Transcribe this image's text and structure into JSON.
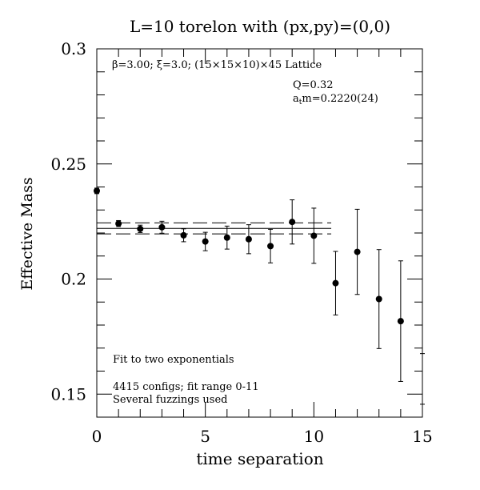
{
  "chart_data": {
    "type": "scatter",
    "title": "L=10 torelon with (px,py)=(0,0)",
    "xlabel": "time separation",
    "ylabel": "Effective Mass",
    "xlim": [
      0,
      15
    ],
    "ylim": [
      0.14,
      0.3
    ],
    "xticks": [
      0,
      5,
      10,
      15
    ],
    "xtick_labels": [
      "0",
      "5",
      "10",
      "15"
    ],
    "yticks": [
      0.15,
      0.2,
      0.25,
      0.3
    ],
    "ytick_labels": [
      "0.15",
      "0.2",
      "0.25",
      "0.3"
    ],
    "grid": false,
    "annotations": {
      "lattice": "β=3.00; ξ=3.0; (15×15×10)×45 Lattice",
      "q": "Q=0.32",
      "mass_prefix": "a",
      "mass_sub": "t",
      "mass_rest": "m=0.2220(24)",
      "fit_type": "Fit to two exponentials",
      "configs": "4415 configs; fit range 0-11",
      "fuzzing": "Several fuzzings used"
    },
    "fit": {
      "value": 0.222,
      "error": 0.0024,
      "x_range": [
        0,
        10.8
      ]
    },
    "points": [
      {
        "x": 0,
        "y": 0.2383,
        "err": 0.0012
      },
      {
        "x": 1,
        "y": 0.2241,
        "err": 0.0013
      },
      {
        "x": 2,
        "y": 0.2218,
        "err": 0.0016
      },
      {
        "x": 3,
        "y": 0.2225,
        "err": 0.0026
      },
      {
        "x": 4,
        "y": 0.219,
        "err": 0.0028
      },
      {
        "x": 5,
        "y": 0.2163,
        "err": 0.004
      },
      {
        "x": 6,
        "y": 0.218,
        "err": 0.005
      },
      {
        "x": 7,
        "y": 0.2173,
        "err": 0.0063
      },
      {
        "x": 8,
        "y": 0.2143,
        "err": 0.0073
      },
      {
        "x": 9,
        "y": 0.2248,
        "err": 0.0096
      },
      {
        "x": 10,
        "y": 0.2188,
        "err": 0.012
      },
      {
        "x": 11,
        "y": 0.1982,
        "err": 0.0138
      },
      {
        "x": 12,
        "y": 0.2118,
        "err": 0.0185
      },
      {
        "x": 13,
        "y": 0.1913,
        "err": 0.0215
      },
      {
        "x": 14,
        "y": 0.1817,
        "err": 0.0262
      },
      {
        "x": 15,
        "y": 0.1566,
        "err": 0.011
      }
    ]
  }
}
